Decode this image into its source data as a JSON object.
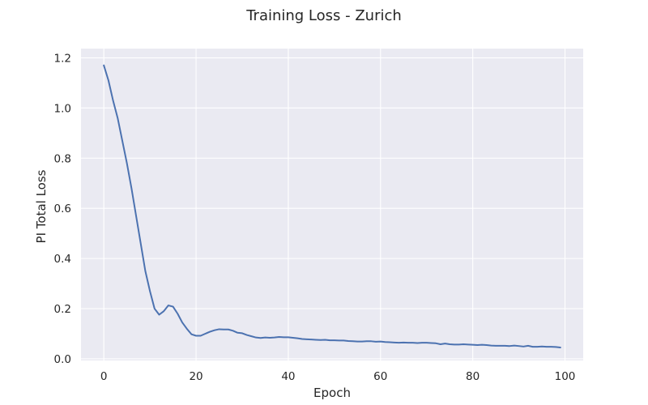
{
  "figure": {
    "title": "Training Loss - Zurich"
  },
  "chart_data": {
    "type": "line",
    "title": "Training Loss - Zurich",
    "xlabel": "Epoch",
    "ylabel": "PI Total Loss",
    "xlim": [
      -4.95,
      103.95
    ],
    "ylim": [
      -0.0065,
      1.2368
    ],
    "xticks": [
      0,
      20,
      40,
      60,
      80,
      100
    ],
    "xtick_labels": [
      "0",
      "20",
      "40",
      "60",
      "80",
      "100"
    ],
    "yticks": [
      0.0,
      0.2,
      0.4,
      0.6,
      0.8,
      1.0,
      1.2
    ],
    "ytick_labels": [
      "0.0",
      "0.2",
      "0.4",
      "0.6",
      "0.8",
      "1.0",
      "1.2"
    ],
    "grid": true,
    "legend": false,
    "background_color": "#EAEAF2",
    "grid_color": "#FFFFFF",
    "series": [
      {
        "color": "#4C72B0",
        "x": [
          0,
          1,
          2,
          3,
          4,
          5,
          6,
          7,
          8,
          9,
          10,
          11,
          12,
          13,
          14,
          15,
          16,
          17,
          18,
          19,
          20,
          21,
          22,
          23,
          24,
          25,
          26,
          27,
          28,
          29,
          30,
          31,
          32,
          33,
          34,
          35,
          36,
          37,
          38,
          39,
          40,
          41,
          42,
          43,
          44,
          45,
          46,
          47,
          48,
          49,
          50,
          51,
          52,
          53,
          54,
          55,
          56,
          57,
          58,
          59,
          60,
          61,
          62,
          63,
          64,
          65,
          66,
          67,
          68,
          69,
          70,
          71,
          72,
          73,
          74,
          75,
          76,
          77,
          78,
          79,
          80,
          81,
          82,
          83,
          84,
          85,
          86,
          87,
          88,
          89,
          90,
          91,
          92,
          93,
          94,
          95,
          96,
          97,
          98,
          99
        ],
        "y": [
          1.17,
          1.11,
          1.03,
          0.96,
          0.87,
          0.78,
          0.68,
          0.57,
          0.46,
          0.35,
          0.27,
          0.2,
          0.176,
          0.19,
          0.213,
          0.208,
          0.18,
          0.145,
          0.12,
          0.098,
          0.092,
          0.092,
          0.1,
          0.108,
          0.114,
          0.118,
          0.117,
          0.117,
          0.112,
          0.104,
          0.102,
          0.095,
          0.09,
          0.085,
          0.083,
          0.085,
          0.084,
          0.085,
          0.087,
          0.086,
          0.086,
          0.084,
          0.082,
          0.079,
          0.078,
          0.077,
          0.076,
          0.075,
          0.076,
          0.074,
          0.074,
          0.073,
          0.073,
          0.071,
          0.07,
          0.069,
          0.069,
          0.07,
          0.07,
          0.068,
          0.069,
          0.067,
          0.066,
          0.065,
          0.064,
          0.065,
          0.064,
          0.064,
          0.063,
          0.064,
          0.064,
          0.063,
          0.062,
          0.058,
          0.061,
          0.058,
          0.057,
          0.057,
          0.058,
          0.057,
          0.056,
          0.055,
          0.056,
          0.055,
          0.053,
          0.052,
          0.052,
          0.052,
          0.051,
          0.053,
          0.051,
          0.049,
          0.052,
          0.048,
          0.048,
          0.049,
          0.048,
          0.048,
          0.047,
          0.045
        ]
      }
    ]
  }
}
